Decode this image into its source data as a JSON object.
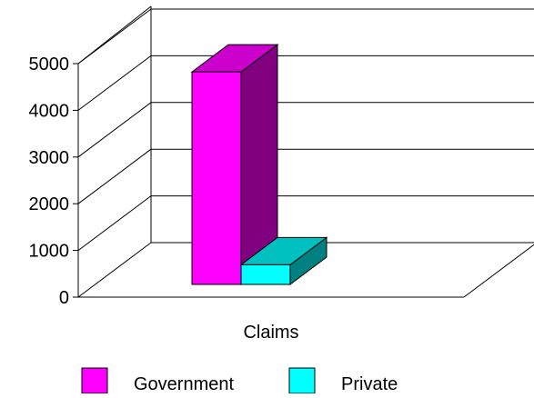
{
  "chart_data": {
    "type": "bar",
    "categories": [
      "Claims"
    ],
    "series": [
      {
        "name": "Government",
        "values": [
          4550
        ]
      },
      {
        "name": "Private",
        "values": [
          420
        ]
      }
    ],
    "ylim": [
      0,
      5000
    ],
    "yticks": [
      0,
      1000,
      2000,
      3000,
      4000,
      5000
    ],
    "ytick_labels": [
      "0",
      "1000",
      "2000",
      "3000",
      "4000",
      "5000"
    ],
    "grid": true,
    "legend": "bottom",
    "colors": {
      "Government": {
        "front": "#ff00ff",
        "top": "#cc00cc",
        "side": "#800080"
      },
      "Private": {
        "front": "#00ffff",
        "top": "#00c0c0",
        "side": "#008080"
      }
    }
  }
}
